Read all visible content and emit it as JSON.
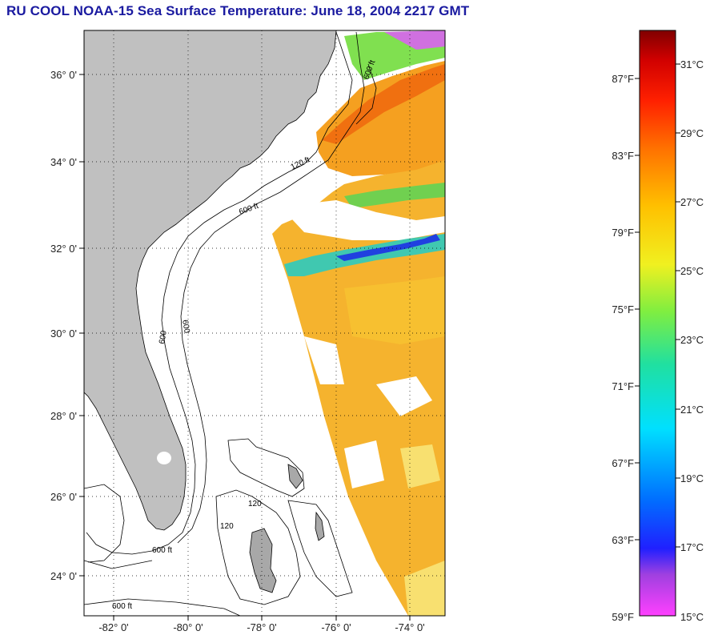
{
  "header": {
    "title": "RU COOL  NOAA-15  Sea Surface Temperature:  June 18, 2004 2217 GMT"
  },
  "map": {
    "lat_labels": [
      "36° 0'",
      "34° 0'",
      "32° 0'",
      "30° 0'",
      "28° 0'",
      "26° 0'",
      "24° 0'"
    ],
    "lon_labels": [
      "-82° 0'",
      "-80° 0'",
      "-78° 0'",
      "-76° 0'",
      "-74° 0'"
    ],
    "contour_labels": [
      "600 ft",
      "120 ft",
      "600 ft",
      "600",
      "600",
      "120",
      "120",
      "600 ft",
      "600 ft"
    ],
    "colors": {
      "land": "#c0c0c0",
      "warm": "#f5b32e",
      "frame": "#000000"
    }
  },
  "colorbar": {
    "fahrenheit": [
      "87°F",
      "83°F",
      "79°F",
      "75°F",
      "71°F",
      "67°F",
      "63°F",
      "59°F"
    ],
    "celsius": [
      "31°C",
      "29°C",
      "27°C",
      "25°C",
      "23°C",
      "21°C",
      "19°C",
      "17°C",
      "15°C"
    ]
  }
}
